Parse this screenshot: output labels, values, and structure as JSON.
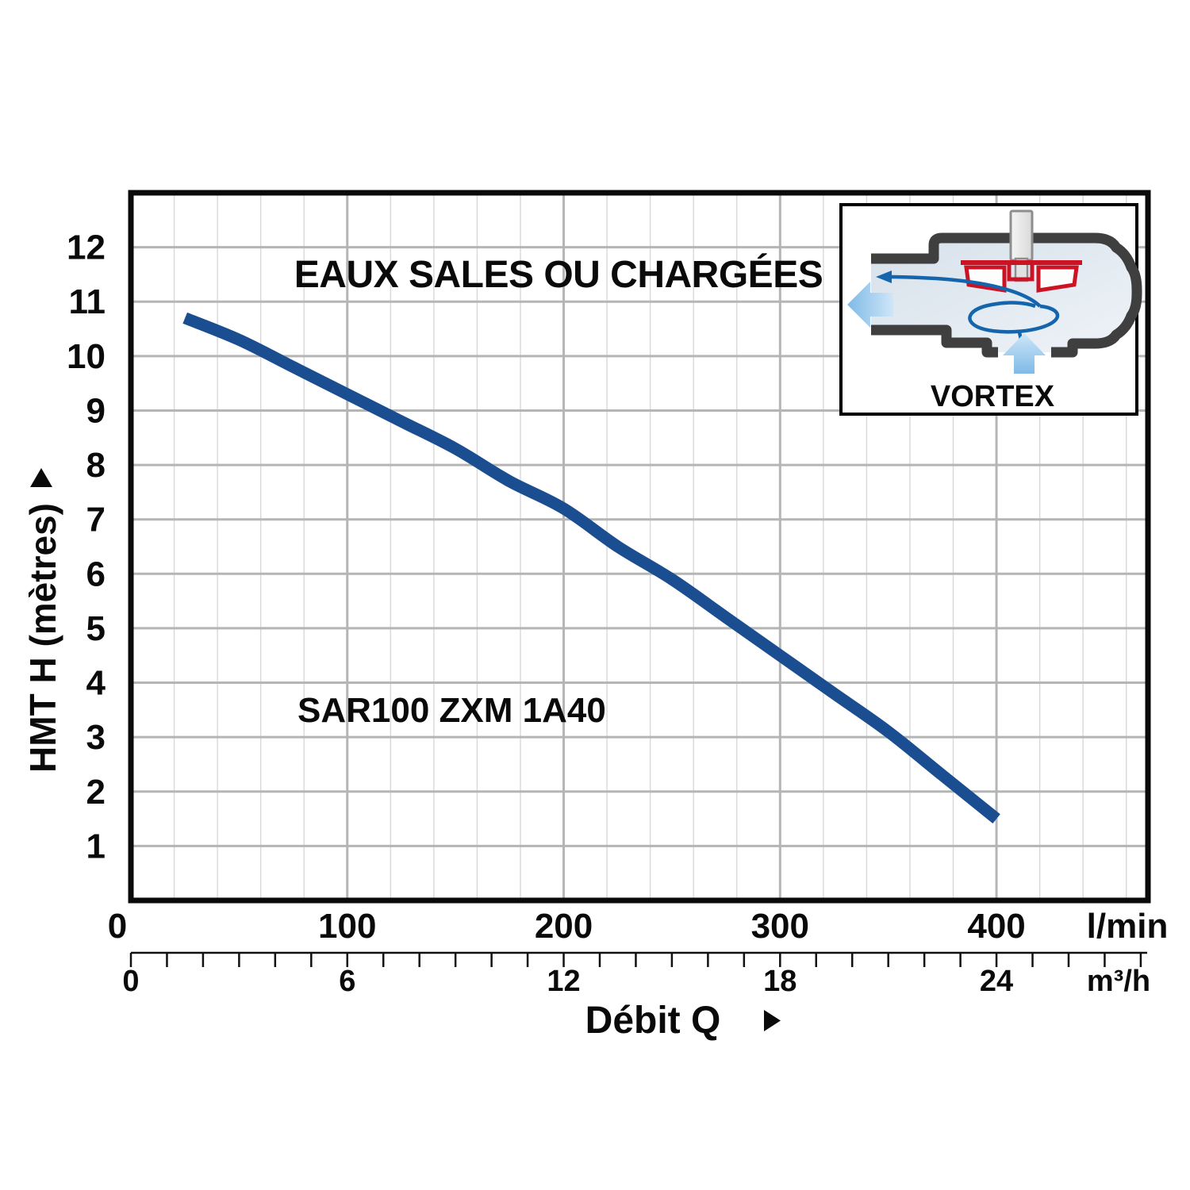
{
  "title": {
    "text": "EAUX SALES OU CHARGÉES",
    "color": "#1a4e91"
  },
  "inset": {
    "label": "VORTEX",
    "colors": {
      "casing_gray": "#3f3f3f",
      "impeller_red": "#cc1324",
      "flow_blue": "#1565ad",
      "arrow_light_blue": "#8fc3ea",
      "interior_blue": "#dde6ee"
    }
  },
  "chart_data": {
    "type": "line",
    "title": "EAUX SALES OU CHARGÉES",
    "x_label": "Débit Q",
    "x_axis_primary": {
      "unit": "l/min",
      "ticks": [
        0,
        100,
        200,
        300,
        400
      ],
      "range": [
        0,
        470
      ],
      "minor_step": 20
    },
    "x_axis_secondary": {
      "unit": "m³/h",
      "ticks": [
        0,
        6,
        12,
        18,
        24
      ],
      "range": [
        0,
        28
      ],
      "minor_step": 1
    },
    "y_axis": {
      "label": "HMT H (mètres)",
      "ticks": [
        1,
        2,
        3,
        4,
        5,
        6,
        7,
        8,
        9,
        10,
        11,
        12
      ],
      "range": [
        0,
        13
      ],
      "step": 1
    },
    "grid": {
      "horizontal_step_m": 1,
      "vertical_minor_step_lmin": 20,
      "vertical_major_step_lmin": 100
    },
    "series": [
      {
        "name": "SAR100 ZXM 1A40",
        "color": "#1a4e91",
        "x_lmin": [
          25,
          50,
          75,
          100,
          125,
          150,
          175,
          200,
          225,
          250,
          275,
          300,
          325,
          350,
          375,
          400
        ],
        "y_m": [
          10.7,
          10.3,
          9.8,
          9.3,
          8.8,
          8.3,
          7.7,
          7.2,
          6.5,
          5.9,
          5.2,
          4.5,
          3.8,
          3.1,
          2.3,
          1.5
        ]
      }
    ]
  }
}
